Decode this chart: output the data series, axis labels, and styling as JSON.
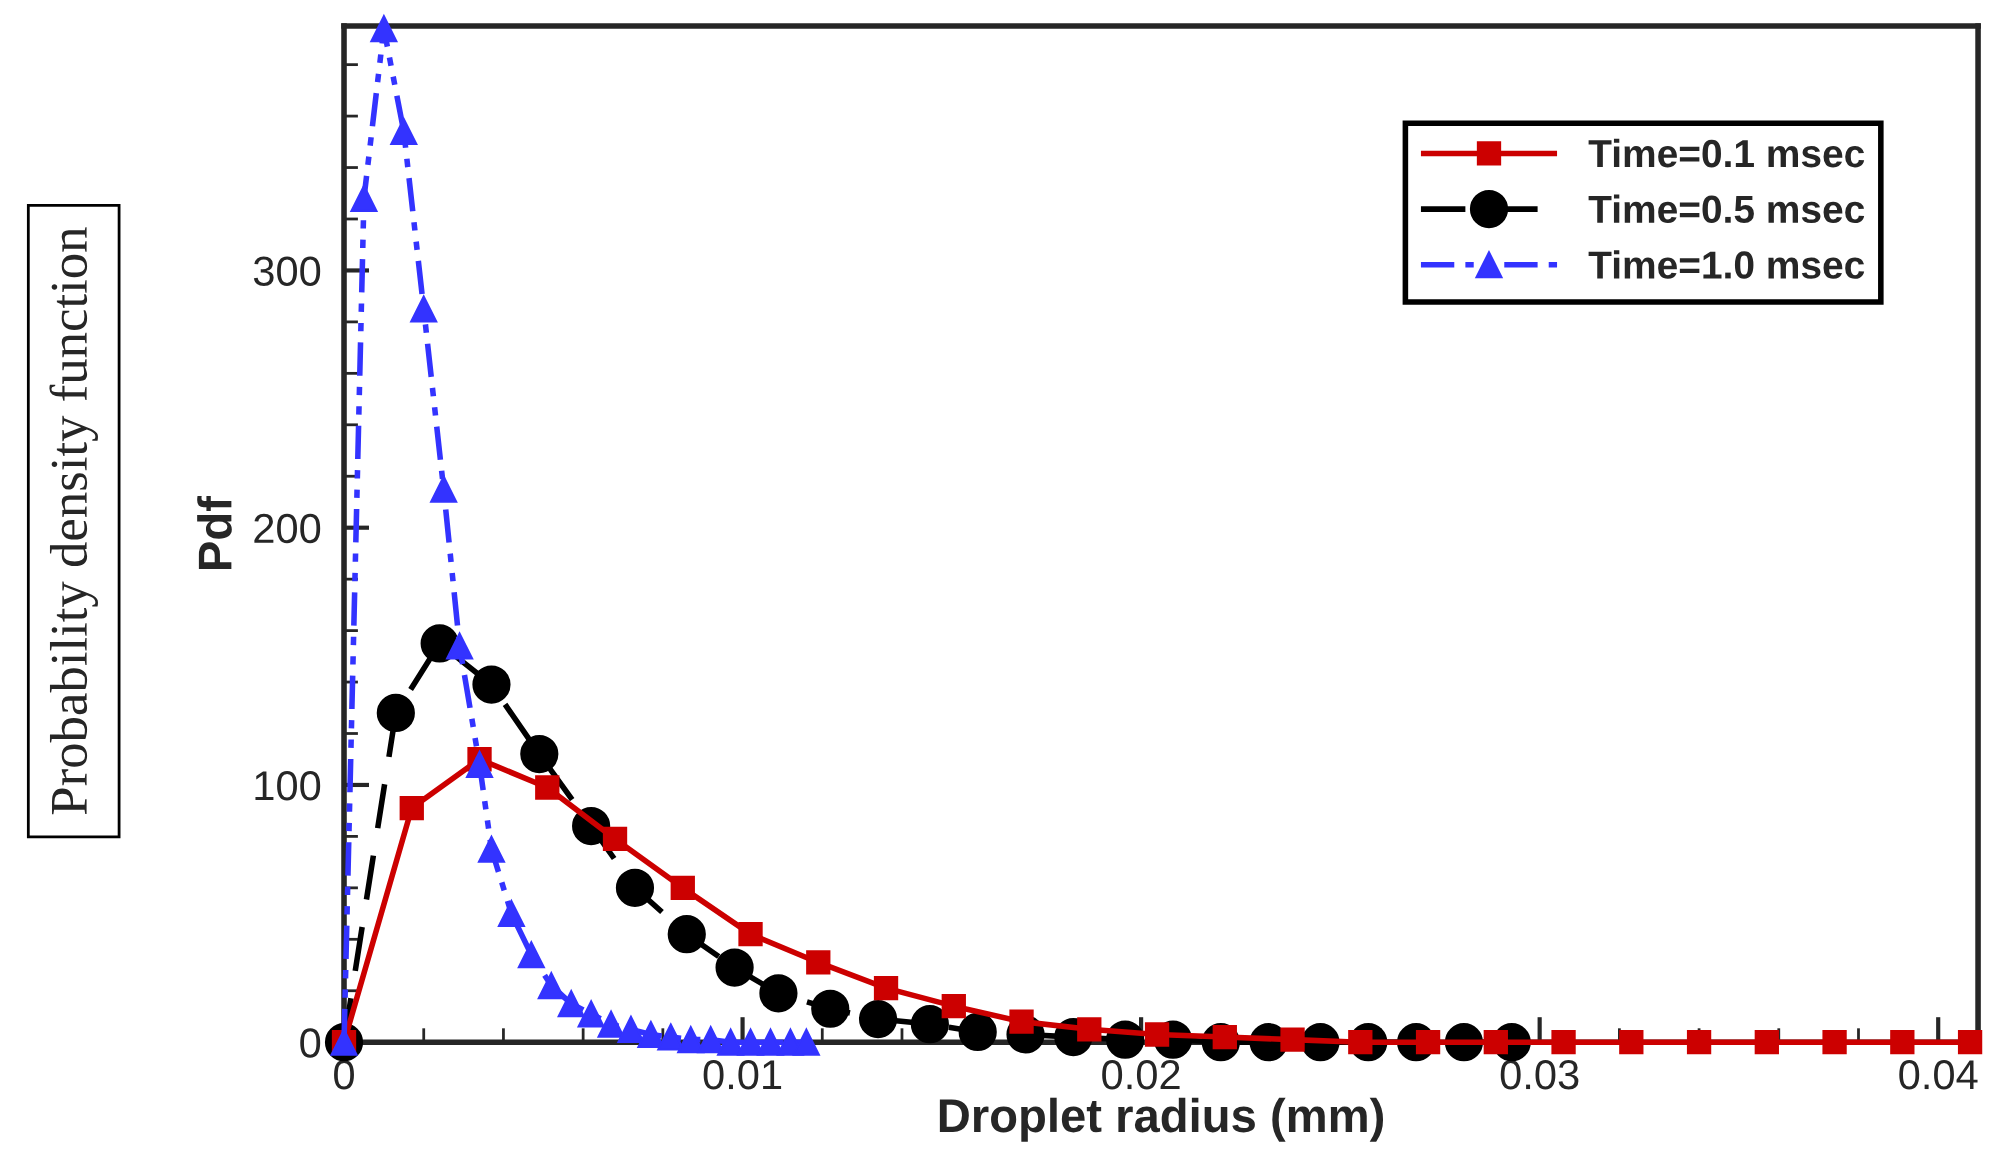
{
  "chart_data": {
    "type": "line",
    "xlabel": "Droplet radius (mm)",
    "ylabel": "Pdf",
    "annotations": [
      "Probability density function"
    ],
    "xlim": [
      0,
      0.041
    ],
    "ylim": [
      0,
      395
    ],
    "xticks": [
      0,
      0.01,
      0.02,
      0.03,
      0.04
    ],
    "yticks": [
      0,
      100,
      200,
      300
    ],
    "grid": false,
    "legend": "top right",
    "series": [
      {
        "name": "Time=0.1 msec",
        "color": "#cc0000",
        "marker": "square",
        "line_style": "solid",
        "x": [
          0,
          0.0017,
          0.0034,
          0.0051,
          0.0068,
          0.0085,
          0.0102,
          0.0119,
          0.0136,
          0.0153,
          0.017,
          0.0187,
          0.0204,
          0.0221,
          0.0238,
          0.0255,
          0.0272,
          0.0289,
          0.0306,
          0.0323,
          0.034,
          0.0357,
          0.0374,
          0.0391,
          0.0408
        ],
        "values": [
          0,
          91,
          110,
          99,
          79,
          60,
          42,
          31,
          21,
          14,
          8,
          5,
          3,
          2,
          1,
          0,
          0,
          0,
          0,
          0,
          0,
          0,
          0,
          0,
          0
        ]
      },
      {
        "name": "Time=0.5 msec",
        "color": "#000000",
        "marker": "circle",
        "line_style": "dashed",
        "x": [
          0,
          0.0013,
          0.0024,
          0.0037,
          0.0049,
          0.0062,
          0.0073,
          0.0086,
          0.0098,
          0.0109,
          0.0122,
          0.0134,
          0.0147,
          0.0159,
          0.0171,
          0.0183,
          0.0196,
          0.0208,
          0.022,
          0.0232,
          0.0245,
          0.0257,
          0.0269,
          0.0281,
          0.0293
        ],
        "values": [
          0,
          128,
          155,
          139,
          112,
          84,
          60,
          42,
          29,
          19,
          13,
          9,
          7,
          4,
          3,
          2,
          1,
          1,
          0,
          0,
          0,
          0,
          0,
          0,
          0
        ]
      },
      {
        "name": "Time=1.0 msec",
        "color": "#3333ff",
        "marker": "triangle",
        "line_style": "dashdot",
        "x": [
          0,
          0.0005,
          0.001,
          0.0015,
          0.002,
          0.0025,
          0.0029,
          0.0034,
          0.0037,
          0.0042,
          0.0047,
          0.0052,
          0.0057,
          0.0062,
          0.0067,
          0.0072,
          0.0077,
          0.0082,
          0.0087,
          0.0092,
          0.0097,
          0.0102,
          0.0107,
          0.0112,
          0.0116
        ],
        "values": [
          0,
          328,
          394,
          354,
          285,
          215,
          154,
          108,
          75,
          50,
          34,
          22,
          15,
          11,
          7,
          5,
          3,
          2,
          1,
          1,
          0,
          0,
          0,
          0,
          0
        ]
      }
    ]
  }
}
